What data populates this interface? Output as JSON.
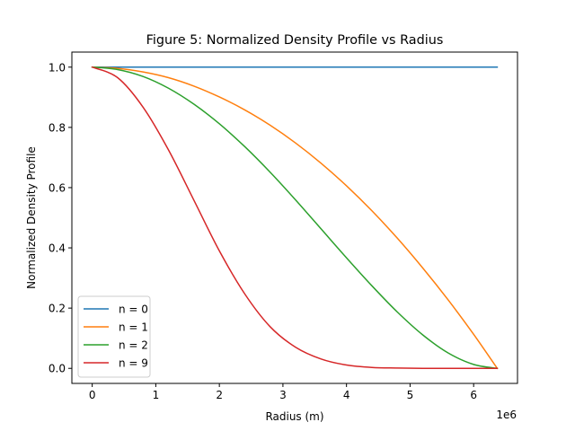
{
  "chart_data": {
    "type": "line",
    "title": "Figure 5: Normalized Density Profile vs Radius",
    "xlabel": "Radius (m)",
    "ylabel": "Normalized Density Profile",
    "x_offset_text": "1e6",
    "xlim": [
      -0.32,
      6.69
    ],
    "ylim": [
      -0.05,
      1.05
    ],
    "xticks": [
      0,
      1,
      2,
      3,
      4,
      5,
      6
    ],
    "xtick_labels": [
      "0",
      "1",
      "2",
      "3",
      "4",
      "5",
      "6"
    ],
    "yticks": [
      0.0,
      0.2,
      0.4,
      0.6,
      0.8,
      1.0
    ],
    "ytick_labels": [
      "0.0",
      "0.2",
      "0.4",
      "0.6",
      "0.8",
      "1.0"
    ],
    "grid": false,
    "legend_position": "lower-left",
    "x": [
      0.0,
      0.4,
      0.8,
      1.2,
      1.6,
      2.0,
      2.4,
      2.8,
      3.2,
      3.6,
      4.0,
      4.4,
      4.8,
      5.2,
      5.6,
      6.0,
      6.371
    ],
    "series": [
      {
        "name": "n = 0",
        "color": "#1f77b4",
        "values": [
          1.0,
          1.0,
          1.0,
          1.0,
          1.0,
          1.0,
          1.0,
          1.0,
          1.0,
          1.0,
          1.0,
          1.0,
          1.0,
          1.0,
          1.0,
          1.0,
          1.0
        ]
      },
      {
        "name": "n = 1",
        "color": "#ff7f0e",
        "values": [
          1.0,
          0.996,
          0.984,
          0.965,
          0.937,
          0.901,
          0.858,
          0.807,
          0.748,
          0.681,
          0.606,
          0.523,
          0.432,
          0.333,
          0.227,
          0.113,
          0.0
        ]
      },
      {
        "name": "n = 2",
        "color": "#2ca02c",
        "values": [
          1.0,
          0.992,
          0.969,
          0.93,
          0.877,
          0.812,
          0.736,
          0.651,
          0.559,
          0.463,
          0.367,
          0.274,
          0.187,
          0.111,
          0.051,
          0.013,
          0.0
        ]
      },
      {
        "name": "n = 9",
        "color": "#d62728",
        "values": [
          1.0,
          0.965,
          0.867,
          0.725,
          0.558,
          0.39,
          0.247,
          0.138,
          0.07,
          0.031,
          0.011,
          0.003,
          0.001,
          0.0,
          0.0,
          0.0,
          0.0
        ]
      }
    ]
  }
}
